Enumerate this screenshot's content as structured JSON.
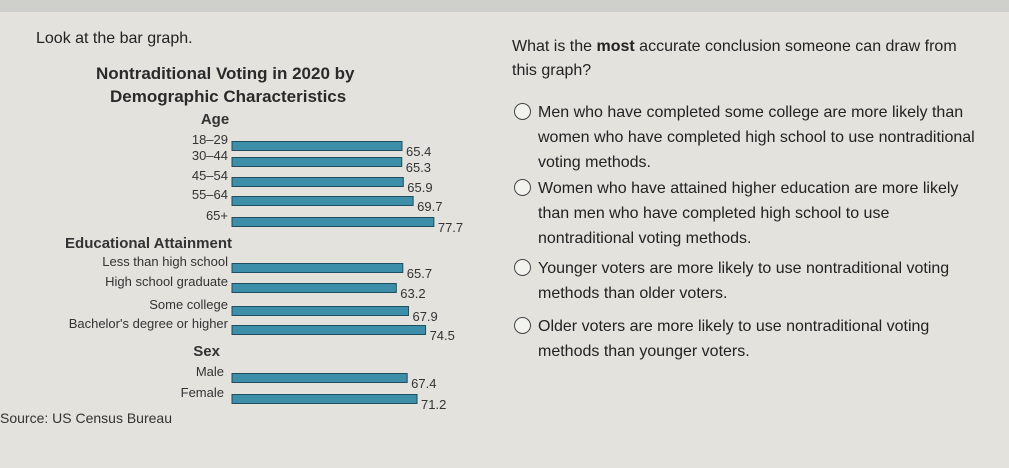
{
  "prompt": "Look at the bar graph.",
  "chart_data": {
    "type": "bar",
    "orientation": "horizontal",
    "title_line1": "Nontraditional Voting in 2020 by",
    "title_line2": "Demographic Characteristics",
    "groups": [
      {
        "name": "Age",
        "categories": [
          "18–29",
          "30–44",
          "45–54",
          "55–64",
          "65+"
        ],
        "values": [
          65.4,
          65.3,
          65.9,
          69.7,
          77.7
        ]
      },
      {
        "name": "Educational Attainment",
        "categories": [
          "Less than high school",
          "High school graduate",
          "Some college",
          "Bachelor's degree or higher"
        ],
        "values": [
          65.7,
          63.2,
          67.9,
          74.5
        ]
      },
      {
        "name": "Sex",
        "categories": [
          "Male",
          "Female"
        ],
        "values": [
          67.4,
          71.2
        ]
      }
    ],
    "source": "Source: US Census Bureau",
    "bar_color": "#3d8ea8"
  },
  "question": {
    "before": "What is the ",
    "emphasis": "most",
    "after": " accurate conclusion someone can draw from this graph?"
  },
  "options": [
    "Men who have completed some college are more likely than women who have completed high school to use nontraditional voting methods.",
    "Women who have attained higher education are more likely than men who have completed high school to use nontraditional voting methods.",
    "Younger voters are more likely to use nontraditional voting methods than older voters.",
    "Older voters are more likely to use nontraditional voting methods than younger voters."
  ]
}
